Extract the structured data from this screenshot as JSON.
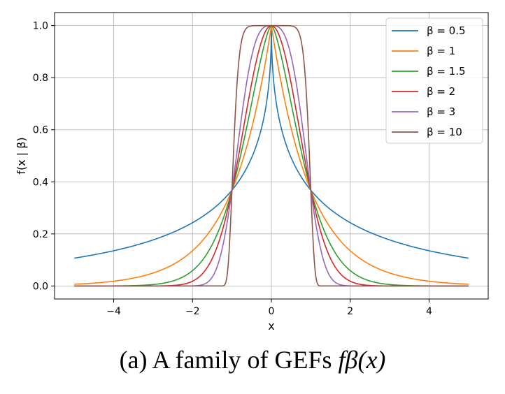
{
  "chart_data": {
    "type": "line",
    "title": "",
    "xlabel": "x",
    "ylabel": "f(x | β)",
    "xlim": [
      -5.5,
      5.5
    ],
    "ylim": [
      -0.05,
      1.05
    ],
    "xticks": [
      -4,
      -2,
      0,
      2,
      4
    ],
    "xtick_labels": [
      "−4",
      "−2",
      "0",
      "2",
      "4"
    ],
    "yticks": [
      0.0,
      0.2,
      0.4,
      0.6,
      0.8,
      1.0
    ],
    "ytick_labels": [
      "0.0",
      "0.2",
      "0.4",
      "0.6",
      "0.8",
      "1.0"
    ],
    "grid": true,
    "legend_position": "top-right",
    "x_domain": [
      -5,
      5
    ],
    "series": [
      {
        "name": "β = 0.5",
        "beta": 0.5,
        "color": "#1f77b4"
      },
      {
        "name": "β = 1",
        "beta": 1,
        "color": "#ff7f0e"
      },
      {
        "name": "β = 1.5",
        "beta": 1.5,
        "color": "#2ca02c"
      },
      {
        "name": "β = 2",
        "beta": 2,
        "color": "#d62728"
      },
      {
        "name": "β = 3",
        "beta": 3,
        "color": "#9467bd"
      },
      {
        "name": "β = 10",
        "beta": 10,
        "color": "#8c564b"
      }
    ]
  },
  "caption": {
    "prefix": "(a) A family of GEFs ",
    "math": "fβ(x)"
  }
}
